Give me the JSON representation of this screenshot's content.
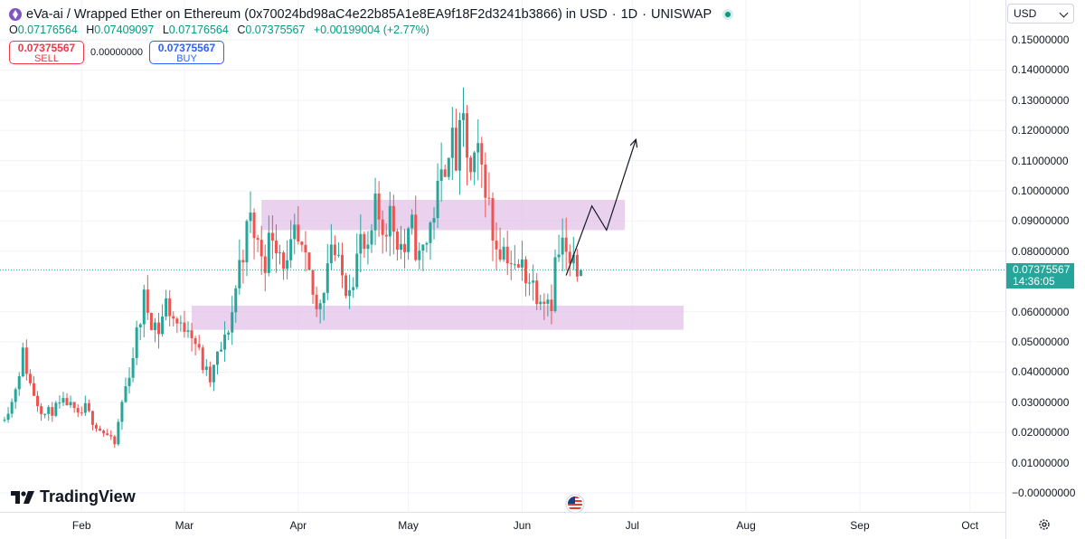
{
  "header": {
    "pair": "eVa-ai / Wrapped Ether on Ethereum (0x70024bd98aC4e22b85A1e8EA9f18F2d3241b3866) in USD",
    "interval": "1D",
    "exchange": "UNISWAP",
    "separator": "·"
  },
  "ohlc": {
    "open_label": "O",
    "open": "0.07176564",
    "high_label": "H",
    "high": "0.07409097",
    "low_label": "L",
    "low": "0.07176564",
    "close_label": "C",
    "close": "0.07375567",
    "change": "+0.00199004 (+2.77%)"
  },
  "trade": {
    "sell_price": "0.07375567",
    "sell_label": "SELL",
    "spread": "0.00000000",
    "buy_price": "0.07375567",
    "buy_label": "BUY"
  },
  "currency_selector": {
    "value": "USD"
  },
  "current_price": {
    "value": "0.07375567",
    "countdown": "14:36:05"
  },
  "branding": {
    "logo_text": "TradingView"
  },
  "colors": {
    "up": "#26a69a",
    "down": "#ef5350",
    "zone": "#e1bee7",
    "accent": "#2962ff"
  },
  "chart_data": {
    "type": "candlestick",
    "y_range": [
      -0.003,
      0.153
    ],
    "y_ticks": [
      {
        "v": 0.15,
        "label": "0.15000000"
      },
      {
        "v": 0.14,
        "label": "0.14000000"
      },
      {
        "v": 0.13,
        "label": "0.13000000"
      },
      {
        "v": 0.12,
        "label": "0.12000000"
      },
      {
        "v": 0.11,
        "label": "0.11000000"
      },
      {
        "v": 0.1,
        "label": "0.10000000"
      },
      {
        "v": 0.09,
        "label": "0.09000000"
      },
      {
        "v": 0.08,
        "label": "0.08000000"
      },
      {
        "v": 0.06,
        "label": "0.06000000"
      },
      {
        "v": 0.05,
        "label": "0.05000000"
      },
      {
        "v": 0.04,
        "label": "0.04000000"
      },
      {
        "v": 0.03,
        "label": "0.03000000"
      },
      {
        "v": 0.02,
        "label": "0.02000000"
      },
      {
        "v": 0.01,
        "label": "0.01000000"
      },
      {
        "v": 0.0,
        "label": "−0.00000000"
      }
    ],
    "x_range_days": [
      0,
      270
    ],
    "x_ticks": [
      {
        "d": 21,
        "label": "Feb"
      },
      {
        "d": 49,
        "label": "Mar"
      },
      {
        "d": 80,
        "label": "Apr"
      },
      {
        "d": 110,
        "label": "May"
      },
      {
        "d": 141,
        "label": "Jun"
      },
      {
        "d": 171,
        "label": "Jul"
      },
      {
        "d": 202,
        "label": "Aug"
      },
      {
        "d": 233,
        "label": "Sep"
      },
      {
        "d": 263,
        "label": "Oct"
      }
    ],
    "zones": [
      {
        "from": 70,
        "to": 169,
        "low": 0.087,
        "high": 0.097
      },
      {
        "from": 51,
        "to": 185,
        "low": 0.054,
        "high": 0.062
      }
    ],
    "projection": [
      [
        153,
        0.072
      ],
      [
        160,
        0.095
      ],
      [
        164,
        0.087
      ],
      [
        172,
        0.117
      ]
    ],
    "current_price_value": 0.07375567,
    "candles": []
  }
}
